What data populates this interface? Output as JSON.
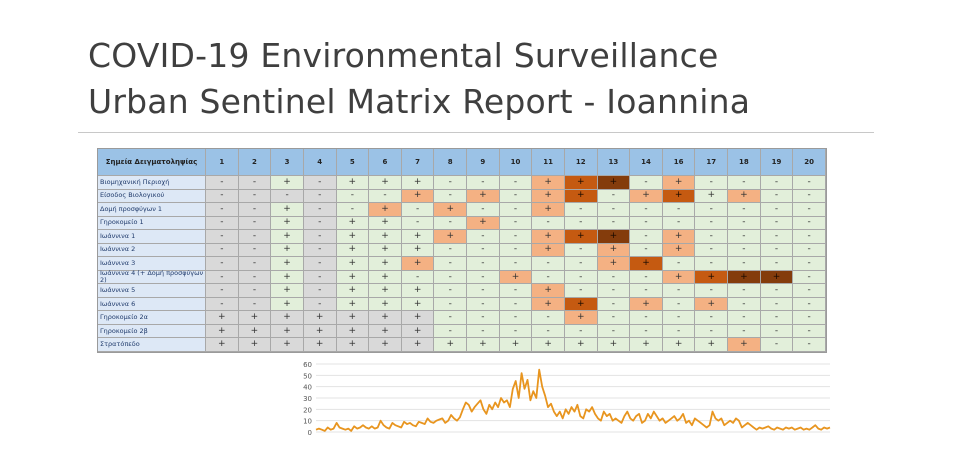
{
  "slide": {
    "title_line1": "COVID-19 Environmental Surveillance",
    "title_line2": "Urban Sentinel Matrix Report - Ioannina"
  },
  "matrix": {
    "header_label": "Σημεία Δειγματοληψίας",
    "columns": [
      "1",
      "2",
      "3",
      "4",
      "5",
      "6",
      "7",
      "8",
      "9",
      "10",
      "11",
      "12",
      "13",
      "14",
      "16",
      "17",
      "18",
      "19",
      "20"
    ],
    "colors": {
      "neg": "#e2efda",
      "pos": "#f4b183",
      "strong": "#c55a11",
      "verystrong": "#843c0c",
      "grey": "#d9d9d9",
      "header": "#9bc2e6"
    },
    "rows": [
      {
        "label": "Βιομηχανική Περιοχή",
        "cells": [
          "-",
          "-",
          "+",
          "-",
          "+",
          "+",
          "+",
          "-",
          "-",
          "-",
          "+",
          "+",
          "+",
          "-",
          "+",
          "-",
          "-",
          "-",
          "-"
        ],
        "level": [
          "g",
          "g",
          "w",
          "g",
          "w",
          "w",
          "w",
          "n",
          "n",
          "n",
          "p",
          "s",
          "v",
          "n",
          "p",
          "n",
          "n",
          "n",
          "n"
        ]
      },
      {
        "label": "Είσοδος Βιολογικού",
        "cells": [
          "-",
          "-",
          "-",
          "-",
          "-",
          "-",
          "+",
          "-",
          "+",
          "-",
          "+",
          "+",
          "-",
          "+",
          "+",
          "+",
          "+",
          "-",
          "-"
        ],
        "level": [
          "g",
          "g",
          "g",
          "g",
          "w",
          "w",
          "p",
          "n",
          "p",
          "n",
          "p",
          "s",
          "n",
          "p",
          "s",
          "w",
          "p",
          "n",
          "n"
        ]
      },
      {
        "label": "Δομή προσφύγων 1",
        "cells": [
          "-",
          "-",
          "+",
          "-",
          "-",
          "+",
          "-",
          "+",
          "-",
          "-",
          "+",
          "-",
          "-",
          "-",
          "-",
          "-",
          "-",
          "-",
          "-"
        ],
        "level": [
          "g",
          "g",
          "w",
          "g",
          "w",
          "p",
          "n",
          "p",
          "n",
          "n",
          "p",
          "n",
          "n",
          "n",
          "n",
          "w",
          "w",
          "w",
          "w"
        ]
      },
      {
        "label": "Γηροκομείο 1",
        "cells": [
          "-",
          "-",
          "+",
          "-",
          "+",
          "+",
          "-",
          "-",
          "+",
          "-",
          "-",
          "-",
          "-",
          "-",
          "-",
          "-",
          "-",
          "-",
          "-"
        ],
        "level": [
          "g",
          "g",
          "w",
          "g",
          "w",
          "w",
          "n",
          "n",
          "p",
          "n",
          "n",
          "n",
          "n",
          "n",
          "n",
          "w",
          "w",
          "w",
          "w"
        ]
      },
      {
        "label": "Ιωάννινα 1",
        "cells": [
          "-",
          "-",
          "+",
          "-",
          "+",
          "+",
          "+",
          "+",
          "-",
          "-",
          "+",
          "+",
          "+",
          "-",
          "+",
          "-",
          "-",
          "-",
          "-"
        ],
        "level": [
          "g",
          "g",
          "w",
          "g",
          "w",
          "w",
          "w",
          "p",
          "n",
          "n",
          "p",
          "s",
          "v",
          "n",
          "p",
          "n",
          "n",
          "n",
          "n"
        ]
      },
      {
        "label": "Ιωάννινα 2",
        "cells": [
          "-",
          "-",
          "+",
          "-",
          "+",
          "+",
          "+",
          "-",
          "-",
          "-",
          "+",
          "-",
          "+",
          "-",
          "+",
          "-",
          "-",
          "-",
          "-"
        ],
        "level": [
          "g",
          "g",
          "w",
          "g",
          "w",
          "w",
          "w",
          "n",
          "n",
          "n",
          "p",
          "n",
          "p",
          "n",
          "p",
          "n",
          "n",
          "n",
          "n"
        ]
      },
      {
        "label": "Ιωάννινα 3",
        "cells": [
          "-",
          "-",
          "+",
          "-",
          "+",
          "+",
          "+",
          "-",
          "-",
          "-",
          "-",
          "-",
          "+",
          "+",
          "-",
          "-",
          "-",
          "-",
          "-"
        ],
        "level": [
          "g",
          "g",
          "w",
          "g",
          "w",
          "w",
          "p",
          "n",
          "n",
          "n",
          "n",
          "n",
          "p",
          "s",
          "n",
          "n",
          "n",
          "n",
          "n"
        ]
      },
      {
        "label": "Ιωάννινα 4 (+ Δομή προσφύγων 2)",
        "cells": [
          "-",
          "-",
          "+",
          "-",
          "+",
          "+",
          "-",
          "-",
          "-",
          "+",
          "-",
          "-",
          "-",
          "-",
          "+",
          "+",
          "+",
          "+",
          "-"
        ],
        "level": [
          "g",
          "g",
          "w",
          "g",
          "w",
          "w",
          "n",
          "n",
          "n",
          "p",
          "n",
          "n",
          "n",
          "n",
          "p",
          "s",
          "v",
          "v",
          "n"
        ]
      },
      {
        "label": "Ιωάννινα 5",
        "cells": [
          "-",
          "-",
          "+",
          "-",
          "+",
          "+",
          "+",
          "-",
          "-",
          "-",
          "+",
          "-",
          "-",
          "-",
          "-",
          "-",
          "-",
          "-",
          "-"
        ],
        "level": [
          "g",
          "g",
          "w",
          "g",
          "w",
          "w",
          "w",
          "n",
          "n",
          "n",
          "p",
          "n",
          "n",
          "n",
          "n",
          "n",
          "w",
          "w",
          "w"
        ]
      },
      {
        "label": "Ιωάννινα 6",
        "cells": [
          "-",
          "-",
          "+",
          "-",
          "+",
          "+",
          "+",
          "-",
          "-",
          "-",
          "+",
          "+",
          "-",
          "+",
          "-",
          "+",
          "-",
          "-",
          "-"
        ],
        "level": [
          "g",
          "g",
          "w",
          "g",
          "w",
          "w",
          "w",
          "n",
          "n",
          "n",
          "p",
          "s",
          "n",
          "p",
          "n",
          "p",
          "w",
          "w",
          "w"
        ]
      },
      {
        "label": "Γηροκομείο 2α",
        "cells": [
          "+",
          "+",
          "+",
          "+",
          "+",
          "+",
          "+",
          "-",
          "-",
          "-",
          "-",
          "+",
          "-",
          "-",
          "-",
          "-",
          "-",
          "-",
          "-"
        ],
        "level": [
          "g",
          "g",
          "g",
          "g",
          "g",
          "g",
          "g",
          "n",
          "n",
          "n",
          "n",
          "p",
          "n",
          "n",
          "n",
          "n",
          "w",
          "w",
          "w"
        ]
      },
      {
        "label": "Γηροκομείο 2β",
        "cells": [
          "+",
          "+",
          "+",
          "+",
          "+",
          "+",
          "+",
          "-",
          "-",
          "-",
          "-",
          "-",
          "-",
          "-",
          "-",
          "-",
          "-",
          "-",
          "-"
        ],
        "level": [
          "g",
          "g",
          "g",
          "g",
          "g",
          "g",
          "g",
          "n",
          "n",
          "n",
          "n",
          "n",
          "n",
          "n",
          "n",
          "n",
          "w",
          "w",
          "w"
        ]
      },
      {
        "label": "Στρατόπεδο",
        "cells": [
          "+",
          "+",
          "+",
          "+",
          "+",
          "+",
          "+",
          "+",
          "+",
          "+",
          "+",
          "+",
          "+",
          "+",
          "+",
          "+",
          "+",
          "-",
          "-"
        ],
        "level": [
          "g",
          "g",
          "g",
          "g",
          "g",
          "g",
          "g",
          "n",
          "n",
          "n",
          "n",
          "n",
          "n",
          "n",
          "n",
          "n",
          "p",
          "n",
          "w"
        ]
      }
    ]
  },
  "chart_data": {
    "type": "line",
    "title": "",
    "xlabel": "",
    "ylabel": "",
    "ylim": [
      0,
      60
    ],
    "yticks": [
      "0",
      "10",
      "20",
      "30",
      "40",
      "50",
      "60"
    ],
    "color": "#e8951f",
    "grid": true,
    "series": [
      {
        "values": [
          2,
          3,
          2,
          1,
          4,
          2,
          3,
          8,
          4,
          3,
          2,
          3,
          1,
          5,
          3,
          4,
          6,
          4,
          3,
          5,
          3,
          4,
          10,
          6,
          4,
          3,
          8,
          6,
          5,
          4,
          9,
          7,
          8,
          6,
          5,
          9,
          8,
          7,
          12,
          9,
          8,
          10,
          11,
          12,
          8,
          10,
          15,
          12,
          10,
          13,
          20,
          26,
          24,
          18,
          22,
          25,
          28,
          20,
          16,
          24,
          20,
          26,
          22,
          30,
          26,
          28,
          22,
          38,
          45,
          30,
          52,
          38,
          46,
          28,
          36,
          30,
          55,
          40,
          32,
          22,
          25,
          18,
          14,
          18,
          12,
          20,
          16,
          22,
          18,
          24,
          14,
          12,
          20,
          18,
          22,
          16,
          12,
          10,
          18,
          14,
          16,
          10,
          12,
          10,
          8,
          14,
          18,
          12,
          10,
          14,
          16,
          8,
          10,
          16,
          12,
          18,
          14,
          10,
          12,
          8,
          10,
          12,
          14,
          10,
          12,
          16,
          8,
          10,
          6,
          12,
          10,
          8,
          6,
          4,
          6,
          18,
          12,
          10,
          12,
          6,
          8,
          10,
          8,
          12,
          10,
          4,
          6,
          8,
          6,
          4,
          2,
          4,
          3,
          4,
          5,
          3,
          2,
          4,
          3,
          2,
          4,
          3,
          4,
          2,
          3,
          4,
          2,
          3,
          2,
          4,
          6,
          3,
          2,
          4,
          3,
          4
        ]
      }
    ]
  }
}
